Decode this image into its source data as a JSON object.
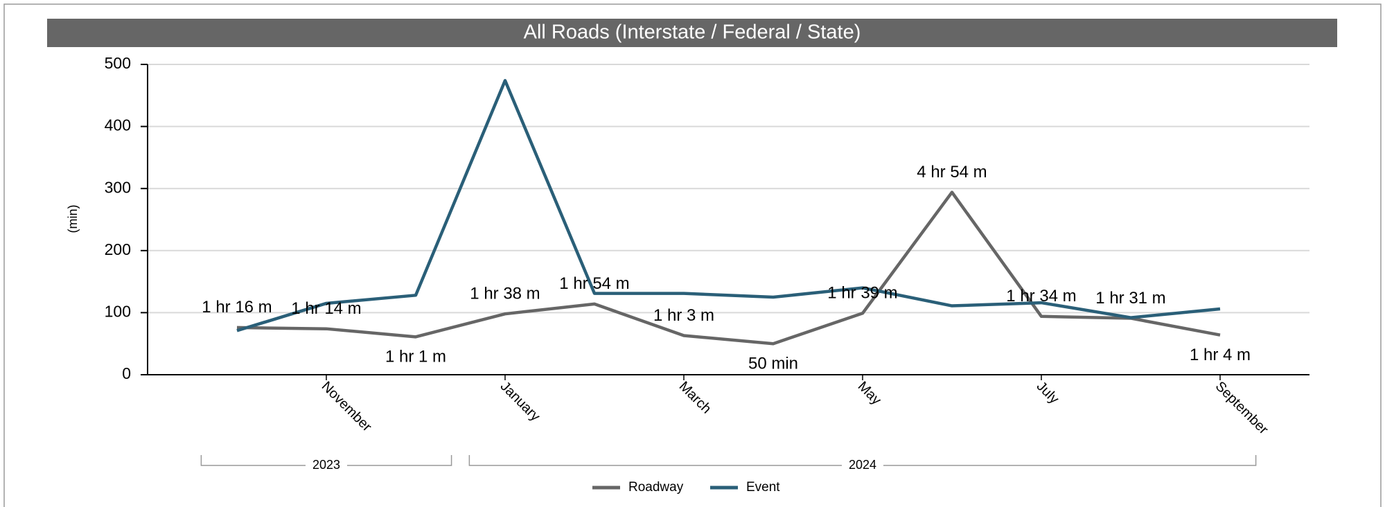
{
  "chart_data": {
    "type": "line",
    "title": "All Roads (Interstate / Federal / State)",
    "y_label": "(min)",
    "categories": [
      null,
      "November",
      null,
      "January",
      null,
      "March",
      null,
      "May",
      null,
      "July",
      null,
      "September"
    ],
    "x_groups": [
      {
        "label": "2023",
        "start": 0,
        "end": 2
      },
      {
        "label": "2024",
        "start": 3,
        "end": 11
      }
    ],
    "series": [
      {
        "name": "Roadway",
        "color": "#666666",
        "values": [
          76,
          74,
          61,
          98,
          114,
          63,
          50,
          99,
          294,
          94,
          91,
          64
        ],
        "value_labels": [
          "1 hr 16 m",
          "1 hr 14 m",
          "1 hr 1 m",
          "1 hr 38 m",
          "1 hr 54 m",
          "1 hr 3 m",
          "50 min",
          "1 hr 39 m",
          "4 hr 54 m",
          "1 hr 34 m",
          "1 hr 31 m",
          "1 hr 4 m"
        ]
      },
      {
        "name": "Event",
        "color": "#2a5f78",
        "values": [
          71,
          115,
          128,
          474,
          131,
          131,
          125,
          140,
          111,
          116,
          92,
          106
        ]
      }
    ],
    "ylim": [
      0,
      500
    ],
    "yticks": [
      0,
      100,
      200,
      300,
      400,
      500
    ],
    "grid": true,
    "legend": "bottom"
  }
}
